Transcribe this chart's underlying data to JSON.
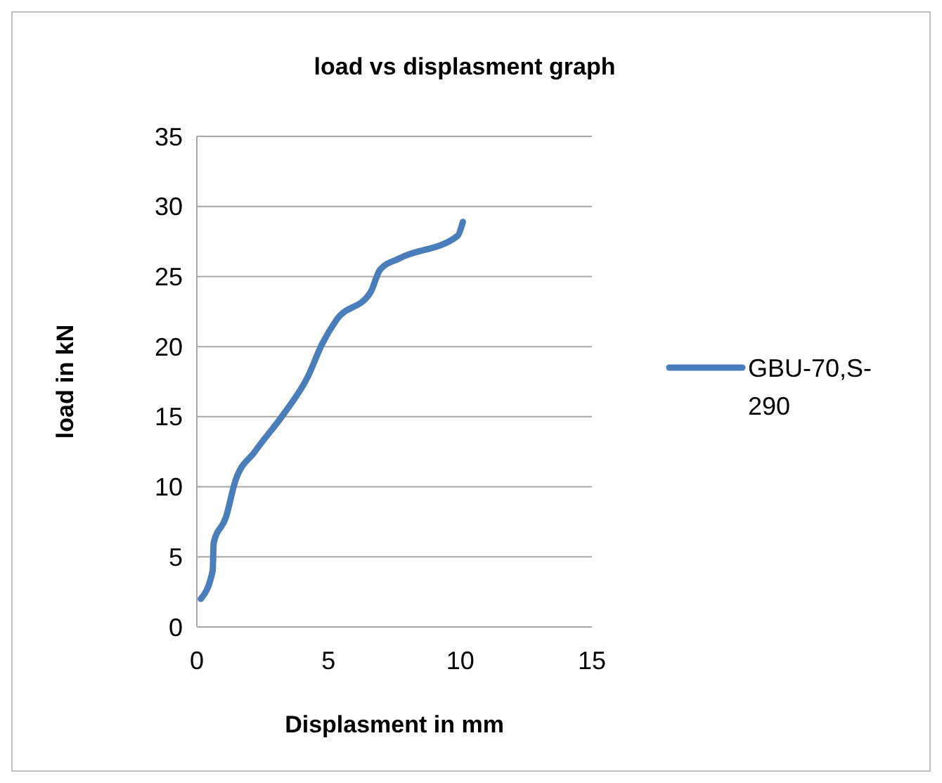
{
  "chart_data": {
    "type": "line",
    "title": "load vs displasment graph",
    "xlabel": "Displasment in mm",
    "ylabel": "load in kN",
    "xlim": [
      0,
      15
    ],
    "xticks": [
      0,
      5,
      10,
      15
    ],
    "ylim": [
      0,
      35
    ],
    "yticks": [
      0,
      5,
      10,
      15,
      20,
      25,
      30,
      35
    ],
    "grid": "y",
    "legend": "right",
    "marker": "none",
    "line_style": "solid",
    "series": [
      {
        "name": "GBU-70,S-290",
        "color": "#4a7ebb",
        "x": [
          0.15,
          0.6,
          0.64,
          1.1,
          1.46,
          2.2,
          3.3,
          4.2,
          4.76,
          5.3,
          6.6,
          6.96,
          7.7,
          9.9,
          10.1
        ],
        "values": [
          2,
          4,
          6,
          7.8,
          10.4,
          12.5,
          15.2,
          17.8,
          20.2,
          21.9,
          23.9,
          25.5,
          26.3,
          27.9,
          28.9
        ]
      }
    ]
  }
}
